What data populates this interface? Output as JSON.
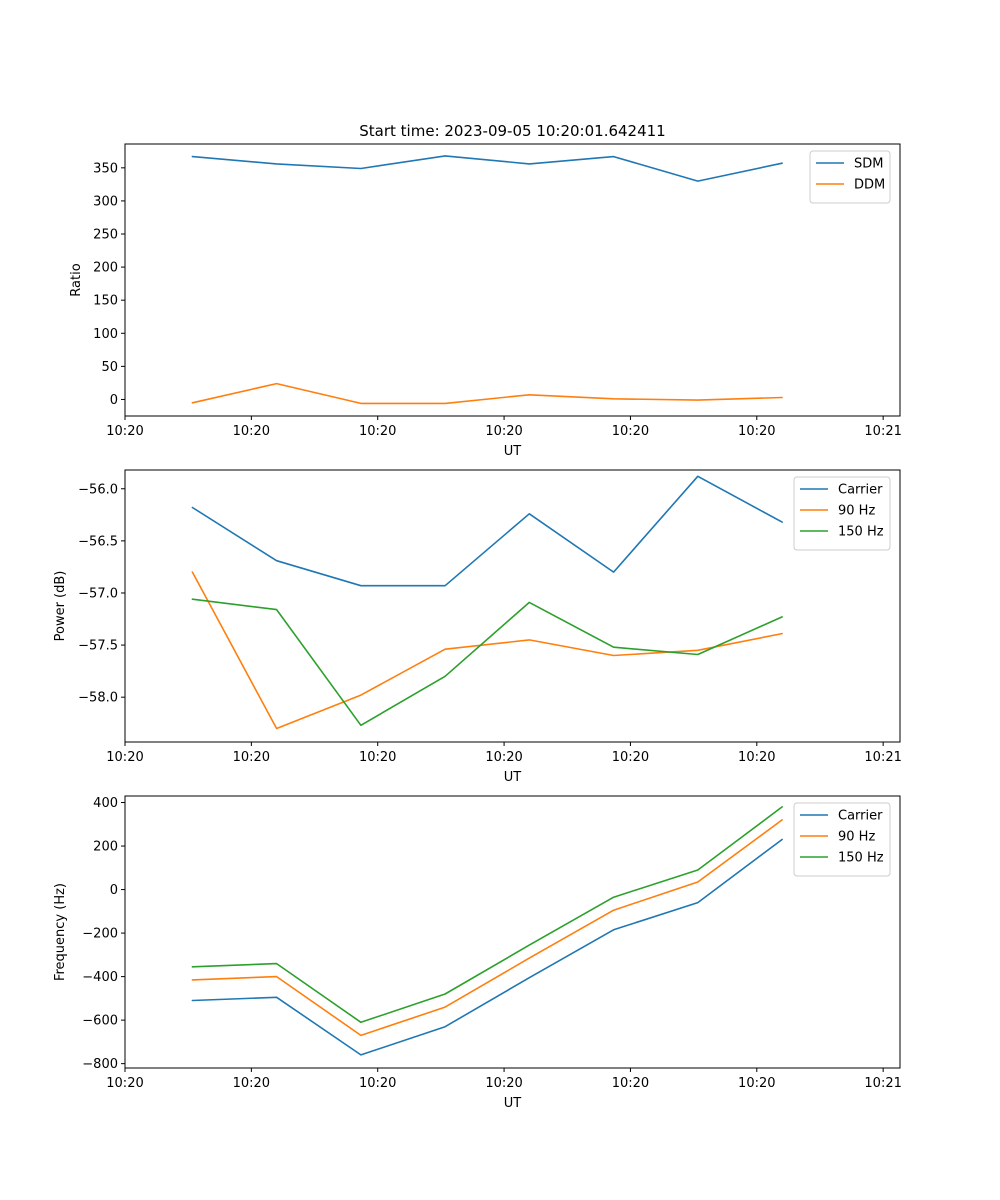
{
  "figure_title": "Start time: 2023-09-05 10:20:01.642411",
  "chart_data": [
    {
      "type": "line",
      "title": "Start time: 2023-09-05 10:20:01.642411",
      "xlabel": "UT",
      "ylabel": "Ratio",
      "x": [
        1,
        2,
        3,
        4,
        5,
        6,
        7,
        8
      ],
      "xlim": [
        0.2,
        9.4
      ],
      "xticks": [
        0.2,
        1.7,
        3.2,
        4.7,
        6.2,
        7.7,
        9.2
      ],
      "xtick_labels": [
        "10:20",
        "10:20",
        "10:20",
        "10:20",
        "10:20",
        "10:20",
        "10:21"
      ],
      "ylim": [
        -25,
        386
      ],
      "yticks": [
        0,
        50,
        100,
        150,
        200,
        250,
        300,
        350
      ],
      "ytick_labels": [
        "0",
        "50",
        "100",
        "150",
        "200",
        "250",
        "300",
        "350"
      ],
      "legend_position": "top-right",
      "series": [
        {
          "name": "SDM",
          "color": "#1f77b4",
          "values": [
            367,
            356,
            349,
            368,
            356,
            367,
            330,
            357
          ]
        },
        {
          "name": "DDM",
          "color": "#ff7f0e",
          "values": [
            -5,
            24,
            -6,
            -6,
            7,
            1,
            -1,
            3
          ]
        }
      ]
    },
    {
      "type": "line",
      "xlabel": "UT",
      "ylabel": "Power (dB)",
      "x": [
        1,
        2,
        3,
        4,
        5,
        6,
        7,
        8
      ],
      "xlim": [
        0.2,
        9.4
      ],
      "xticks": [
        0.2,
        1.7,
        3.2,
        4.7,
        6.2,
        7.7,
        9.2
      ],
      "xtick_labels": [
        "10:20",
        "10:20",
        "10:20",
        "10:20",
        "10:20",
        "10:20",
        "10:21"
      ],
      "ylim": [
        -58.43,
        -55.82
      ],
      "yticks": [
        -56.0,
        -56.5,
        -57.0,
        -57.5,
        -58.0
      ],
      "ytick_labels": [
        "−56.0",
        "−56.5",
        "−57.0",
        "−57.5",
        "−58.0"
      ],
      "legend_position": "top-right",
      "series": [
        {
          "name": "Carrier",
          "color": "#1f77b4",
          "values": [
            -56.18,
            -56.69,
            -56.93,
            -56.93,
            -56.24,
            -56.8,
            -55.88,
            -56.32
          ]
        },
        {
          "name": "90 Hz",
          "color": "#ff7f0e",
          "values": [
            -56.8,
            -58.3,
            -57.98,
            -57.54,
            -57.45,
            -57.6,
            -57.55,
            -57.39
          ]
        },
        {
          "name": "150 Hz",
          "color": "#2ca02c",
          "values": [
            -57.06,
            -57.16,
            -58.27,
            -57.8,
            -57.09,
            -57.52,
            -57.59,
            -57.23
          ]
        }
      ]
    },
    {
      "type": "line",
      "xlabel": "UT",
      "ylabel": "Frequency (Hz)",
      "x": [
        1,
        2,
        3,
        4,
        5,
        6,
        7,
        8
      ],
      "xlim": [
        0.2,
        9.4
      ],
      "xticks": [
        0.2,
        1.7,
        3.2,
        4.7,
        6.2,
        7.7,
        9.2
      ],
      "xtick_labels": [
        "10:20",
        "10:20",
        "10:20",
        "10:20",
        "10:20",
        "10:20",
        "10:21"
      ],
      "ylim": [
        -820,
        430
      ],
      "yticks": [
        400,
        200,
        0,
        -200,
        -400,
        -600,
        -800
      ],
      "ytick_labels": [
        "400",
        "200",
        "0",
        "−200",
        "−400",
        "−600",
        "−800"
      ],
      "legend_position": "top-right",
      "series": [
        {
          "name": "Carrier",
          "color": "#1f77b4",
          "values": [
            -510,
            -495,
            -760,
            -630,
            -405,
            -185,
            -60,
            230
          ]
        },
        {
          "name": "90 Hz",
          "color": "#ff7f0e",
          "values": [
            -415,
            -400,
            -670,
            -540,
            -315,
            -95,
            35,
            320
          ]
        },
        {
          "name": "150 Hz",
          "color": "#2ca02c",
          "values": [
            -355,
            -340,
            -610,
            -480,
            -255,
            -35,
            90,
            380
          ]
        }
      ]
    }
  ]
}
